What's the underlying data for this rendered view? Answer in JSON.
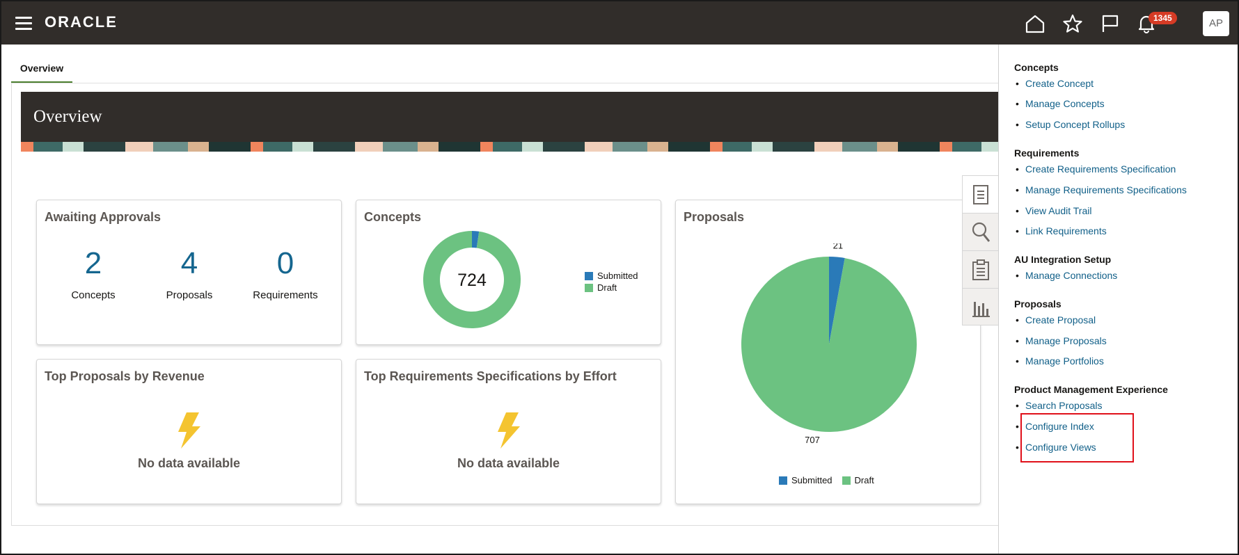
{
  "header": {
    "logo": "ORACLE",
    "notification_count": "1345",
    "avatar_initials": "AP",
    "icons": [
      "home-icon",
      "star-icon",
      "flag-icon",
      "bell-icon"
    ]
  },
  "tabs": [
    {
      "label": "Overview"
    }
  ],
  "banner": {
    "title": "Overview"
  },
  "awaiting": {
    "title": "Awaiting Approvals",
    "metrics": [
      {
        "value": "2",
        "label": "Concepts"
      },
      {
        "value": "4",
        "label": "Proposals"
      },
      {
        "value": "0",
        "label": "Requirements"
      }
    ]
  },
  "concepts": {
    "title": "Concepts",
    "center_total": "724"
  },
  "proposals": {
    "title": "Proposals"
  },
  "top_revenue": {
    "title": "Top Proposals by Revenue",
    "empty": "No data available"
  },
  "top_effort": {
    "title": "Top Requirements Specifications by Effort",
    "empty": "No data available"
  },
  "chart_data": [
    {
      "type": "pie",
      "title": "Concepts",
      "donut": true,
      "center_label": "724",
      "categories": [
        "Submitted",
        "Draft"
      ],
      "values": [
        17,
        707
      ],
      "colors": [
        "#2a7ab8",
        "#6cc281"
      ],
      "legend": "right"
    },
    {
      "type": "pie",
      "title": "Proposals",
      "categories": [
        "Submitted",
        "Draft"
      ],
      "values": [
        21,
        707
      ],
      "data_labels": [
        "21",
        "707"
      ],
      "colors": [
        "#2a7ab8",
        "#6cc281"
      ],
      "legend": "bottom"
    }
  ],
  "legend_labels": {
    "submitted": "Submitted",
    "draft": "Draft"
  },
  "side_tools": [
    "list-icon",
    "search-icon",
    "clipboard-icon",
    "bar-chart-icon"
  ],
  "tasks": [
    {
      "group": "Concepts",
      "links": [
        "Create Concept",
        "Manage Concepts",
        "Setup Concept Rollups"
      ]
    },
    {
      "group": "Requirements",
      "links": [
        "Create Requirements Specification",
        "Manage Requirements Specifications",
        "View Audit Trail",
        "Link Requirements"
      ]
    },
    {
      "group": "AU Integration Setup",
      "links": [
        "Manage Connections"
      ]
    },
    {
      "group": "Proposals",
      "links": [
        "Create Proposal",
        "Manage Proposals",
        "Manage Portfolios"
      ]
    },
    {
      "group": "Product Management Experience",
      "links": [
        "Search Proposals",
        "Configure Index",
        "Configure Views"
      ]
    }
  ]
}
